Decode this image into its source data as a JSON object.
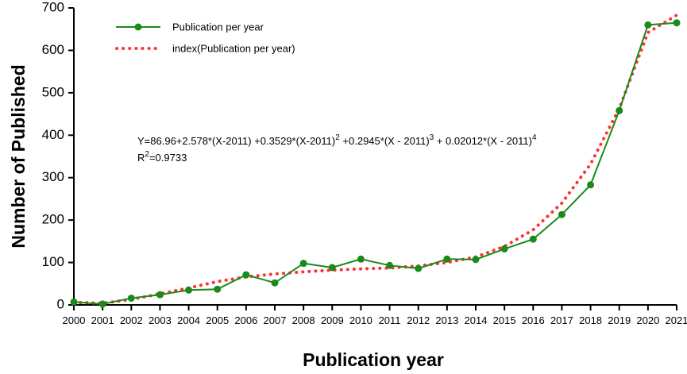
{
  "chart_data": {
    "type": "line",
    "title": "",
    "xlabel": "Publication year",
    "ylabel": "Number of Published",
    "xlim": [
      2000,
      2021
    ],
    "ylim": [
      0,
      700
    ],
    "x": [
      2000,
      2001,
      2002,
      2003,
      2004,
      2005,
      2006,
      2007,
      2008,
      2009,
      2010,
      2011,
      2012,
      2013,
      2014,
      2015,
      2016,
      2017,
      2018,
      2019,
      2020,
      2021
    ],
    "yticks": [
      0,
      100,
      200,
      300,
      400,
      500,
      600,
      700
    ],
    "series": [
      {
        "name": "Publication per year",
        "color": "#1a8a1a",
        "style": "solid-with-markers",
        "values": [
          7,
          2,
          16,
          24,
          35,
          37,
          71,
          52,
          98,
          88,
          108,
          93,
          86,
          108,
          107,
          132,
          155,
          213,
          283,
          458,
          660,
          665
        ]
      },
      {
        "name": "index(Publication per year)",
        "color": "#ff3030",
        "style": "dotted",
        "values": [
          6,
          4,
          13,
          26,
          40,
          55,
          66,
          73,
          78,
          82,
          85,
          87,
          92,
          100,
          113,
          138,
          177,
          240,
          332,
          463,
          642,
          683
        ]
      }
    ],
    "annotation": {
      "equation": {
        "prefix": "Y=86.96+2.578*(X-2011) +0.3529*(X-2011)",
        "exp1": "2",
        "mid": " +0.2945*(X - 2011)",
        "exp2": "3",
        "mid2": " + 0.02012*(X - 2011)",
        "exp3": "4"
      },
      "r2": {
        "prefix": "R",
        "exp": "2",
        "suffix": "=0.9733"
      }
    },
    "grid": false,
    "legend_position": "top-left"
  }
}
